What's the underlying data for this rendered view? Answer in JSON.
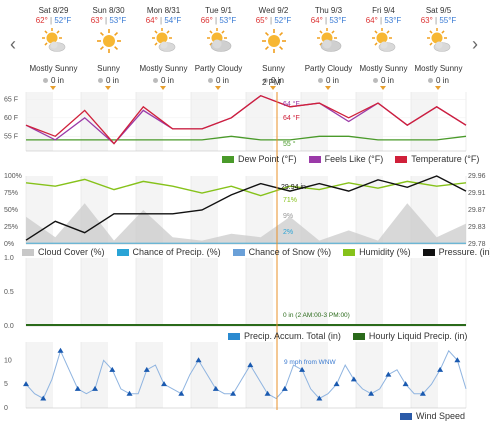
{
  "nav": {
    "prev": "‹",
    "next": "›"
  },
  "days": [
    {
      "date": "Sat 8/29",
      "hi": "62°",
      "lo": "52°F",
      "cond": "Mostly Sunny",
      "precip": "0 in",
      "icon": "partly-sunny-icon"
    },
    {
      "date": "Sun 8/30",
      "hi": "63°",
      "lo": "53°F",
      "cond": "Sunny",
      "precip": "0 in",
      "icon": "sun-icon"
    },
    {
      "date": "Mon 8/31",
      "hi": "64°",
      "lo": "54°F",
      "cond": "Mostly Sunny",
      "precip": "0 in",
      "icon": "partly-sunny-icon"
    },
    {
      "date": "Tue 9/1",
      "hi": "66°",
      "lo": "53°F",
      "cond": "Partly Cloudy",
      "precip": "0 in",
      "icon": "partly-cloudy-icon"
    },
    {
      "date": "Wed 9/2",
      "hi": "65°",
      "lo": "52°F",
      "cond": "Sunny",
      "precip": "0 in",
      "icon": "sun-icon"
    },
    {
      "date": "Thu 9/3",
      "hi": "64°",
      "lo": "53°F",
      "cond": "Partly Cloudy",
      "precip": "0 in",
      "icon": "partly-cloudy-icon"
    },
    {
      "date": "Fri 9/4",
      "hi": "64°",
      "lo": "53°F",
      "cond": "Mostly Sunny",
      "precip": "0 in",
      "icon": "partly-sunny-icon"
    },
    {
      "date": "Sat 9/5",
      "hi": "63°",
      "lo": "55°F",
      "cond": "Mostly Sunny",
      "precip": "0 in",
      "icon": "partly-sunny-icon"
    }
  ],
  "cursor_time": "2 PM",
  "colors": {
    "dew": "#4a9a2a",
    "feels": "#9b3aa8",
    "temp": "#d0203a",
    "cloud": "#c8c8c8",
    "precip": "#2aa4d6",
    "snow": "#6aa0d8",
    "humid": "#86c21a",
    "pressure": "#111111",
    "accum": "#2a8ad0",
    "hourly": "#2a6a1a",
    "wind": "#3a7ad0",
    "cursor": "#e8902a"
  },
  "chart_data": [
    {
      "type": "line",
      "y_axis_ticks": [
        "65 F",
        "60 F",
        "55 F"
      ],
      "ylim": [
        51,
        67
      ],
      "series": [
        {
          "name": "Dew Point (°F)",
          "values": [
            54,
            54,
            54,
            54,
            54,
            54,
            54,
            55,
            54,
            54,
            55,
            55,
            54,
            54,
            54,
            55
          ]
        },
        {
          "name": "Feels Like (°F)",
          "values": [
            58,
            54,
            60,
            53,
            62,
            57,
            57,
            60,
            66,
            63,
            64,
            59,
            64,
            58,
            63,
            58
          ]
        },
        {
          "name": "Temperature (°F)",
          "values": [
            58,
            55,
            62,
            53,
            63,
            57,
            57,
            60,
            66,
            63,
            64,
            60,
            64,
            58,
            63,
            58
          ]
        }
      ],
      "annotations": {
        "feels": "64 °F",
        "temp": "64 °F",
        "dew": "55 °"
      }
    },
    {
      "type": "area",
      "y_axis_ticks_left": [
        "100%",
        "75%",
        "50%",
        "25%",
        "0%"
      ],
      "y_axis_ticks_right": [
        "29.96",
        "29.91",
        "29.87",
        "29.83",
        "29.78"
      ],
      "series": [
        {
          "name": "Cloud Cover (%)",
          "values": [
            40,
            10,
            60,
            5,
            50,
            10,
            5,
            15,
            10,
            40,
            5,
            20,
            5,
            60,
            10,
            30
          ]
        },
        {
          "name": "Chance of Precip. (%)",
          "values": [
            2,
            2,
            2,
            2,
            2,
            2,
            2,
            2,
            2,
            2,
            2,
            2,
            2,
            2,
            2,
            2
          ]
        },
        {
          "name": "Chance of Snow (%)",
          "values": [
            0,
            0,
            0,
            0,
            0,
            0,
            0,
            0,
            0,
            0,
            0,
            0,
            0,
            0,
            0,
            0
          ]
        },
        {
          "name": "Humidity (%)",
          "values": [
            90,
            85,
            95,
            80,
            92,
            85,
            75,
            85,
            71,
            85,
            80,
            90,
            82,
            92,
            85,
            90
          ]
        },
        {
          "name": "Pressure. (in)",
          "values": [
            29.79,
            29.84,
            29.81,
            29.86,
            29.86,
            29.86,
            29.87,
            29.91,
            29.94,
            29.92,
            29.94,
            29.92,
            29.95,
            29.93,
            29.96,
            29.92
          ]
        }
      ],
      "annotations": {
        "pressure": "29.94 in",
        "humid": "71%",
        "cloud": "9%",
        "precip": "2%"
      }
    },
    {
      "type": "line",
      "y_axis_ticks": [
        "1.0",
        "0.5",
        "0.0"
      ],
      "series": [
        {
          "name": "Precip. Accum. Total (in)",
          "values": [
            0,
            0
          ]
        },
        {
          "name": "Hourly Liquid Precip. (in)",
          "values": [
            0,
            0
          ]
        }
      ],
      "annotation": "0 in (2 AM:00-3 PM:00)"
    },
    {
      "type": "line",
      "y_axis_ticks": [
        "10",
        "5",
        "0"
      ],
      "series": [
        {
          "name": "Wind Speed",
          "values": [
            5,
            3,
            2,
            6,
            12,
            8,
            4,
            3,
            4,
            10,
            8,
            4,
            3,
            3,
            8,
            9,
            5,
            4,
            3,
            7,
            10,
            7,
            4,
            3,
            3,
            6,
            9,
            6,
            3,
            2,
            4,
            9,
            8,
            4,
            2,
            3,
            5,
            9,
            6,
            4,
            3,
            4,
            7,
            8,
            5,
            3,
            3,
            5,
            8,
            12,
            10,
            4
          ]
        }
      ],
      "annotation": "9 mph from WNW"
    }
  ],
  "legends": {
    "temp": [
      "Dew Point (°F)",
      "Feels Like (°F)",
      "Temperature (°F)"
    ],
    "humid": [
      "Cloud Cover (%)",
      "Chance of Precip. (%)",
      "Chance of Snow (%)",
      "Humidity (%)",
      "Pressure. (in)"
    ],
    "precip": [
      "Precip. Accum. Total (in)",
      "Hourly Liquid Precip. (in)"
    ],
    "wind": [
      "Wind Speed"
    ]
  }
}
